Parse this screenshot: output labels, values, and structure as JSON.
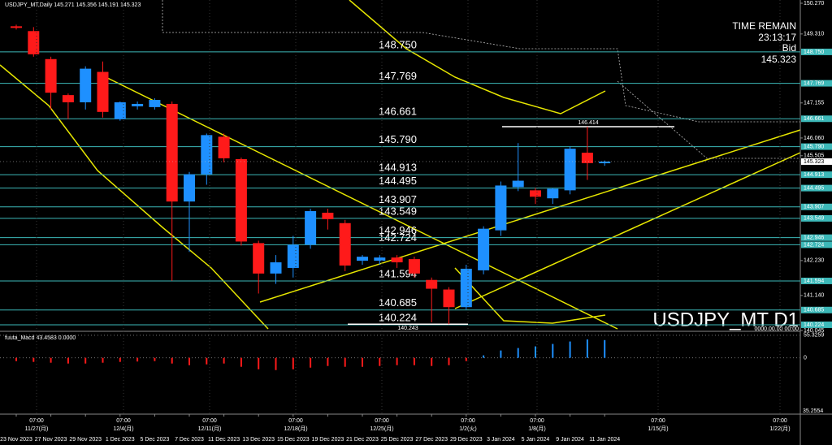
{
  "chart_data": {
    "type": "candlestick",
    "title": "USDJPY_MT,Daily 145.271 145.356 145.191 145.323",
    "symbol_label": "USDJPY_MT D1",
    "categories": [
      "23 Nov 2023",
      null,
      "27 Nov 2023",
      null,
      "29 Nov 2023",
      null,
      "1 Dec 2023",
      null,
      "5 Dec 2023",
      null,
      "7 Dec 2023",
      null,
      "11 Dec 2023",
      null,
      "13 Dec 2023",
      null,
      "15 Dec 2023",
      null,
      "19 Dec 2023",
      null,
      "21 Dec 2023",
      null,
      "25 Dec 2023",
      null,
      "27 Dec 2023",
      null,
      "29 Dec 2023",
      null,
      "3 Jan 2024",
      null,
      "5 Jan 2024",
      null,
      "9 Jan 2024",
      null,
      "11 Jan 2024"
    ],
    "open": [
      149.55,
      149.4,
      148.525,
      147.4,
      147.175,
      148.125,
      146.65,
      147.05,
      147.025,
      147.125,
      144.075,
      144.925,
      146.1,
      145.4,
      142.775,
      141.825,
      142.0,
      142.725,
      143.725,
      143.4,
      142.225,
      142.225,
      142.325,
      142.275,
      141.625,
      141.325,
      140.775,
      141.925,
      143.175,
      144.525,
      144.425,
      144.175,
      144.425,
      145.6,
      145.271
    ],
    "high": [
      149.6,
      149.525,
      148.6,
      147.45,
      148.3,
      148.45,
      147.2,
      147.2,
      147.3,
      147.2,
      145.0,
      146.2,
      146.2,
      145.45,
      142.85,
      142.4,
      143.0,
      143.85,
      143.85,
      143.5,
      142.4,
      142.4,
      142.4,
      142.35,
      141.7,
      141.4,
      142.1,
      143.3,
      144.7,
      145.9,
      144.5,
      144.5,
      145.8,
      146.414,
      145.356
    ],
    "low": [
      149.45,
      148.6,
      146.95,
      146.65,
      146.95,
      146.7,
      146.6,
      146.95,
      146.95,
      141.6,
      142.5,
      144.6,
      145.3,
      142.7,
      141.2,
      141.5,
      141.7,
      142.6,
      143.2,
      141.9,
      142.1,
      142.1,
      142.0,
      141.7,
      140.3,
      140.243,
      140.7,
      141.8,
      143.0,
      144.4,
      144.0,
      144.0,
      144.3,
      144.75,
      145.191
    ],
    "close": [
      149.5,
      148.675,
      147.475,
      147.175,
      148.225,
      146.875,
      147.175,
      147.125,
      147.25,
      144.075,
      144.925,
      146.15,
      145.425,
      142.825,
      141.825,
      142.175,
      142.725,
      143.775,
      143.525,
      142.075,
      142.35,
      142.325,
      142.175,
      141.825,
      141.35,
      140.775,
      141.975,
      143.225,
      144.575,
      144.725,
      144.225,
      144.475,
      145.725,
      145.275,
      145.323
    ],
    "up_color": "#1e90ff",
    "down_color": "#ff1a1a",
    "ylim": [
      140.045,
      150.27
    ],
    "yticks": [
      {
        "value": 150.27,
        "label": "150.270"
      },
      {
        "value": 149.31,
        "label": "149.310"
      },
      {
        "value": 147.155,
        "label": "147.155"
      },
      {
        "value": 146.06,
        "label": "146.060"
      },
      {
        "value": 145.505,
        "label": "145.505"
      },
      {
        "value": 142.23,
        "label": "142.230"
      },
      {
        "value": 141.14,
        "label": "141.140"
      },
      {
        "value": 140.045,
        "label": "140.045"
      }
    ],
    "level_color": "#3cb8b8",
    "levels": [
      {
        "value": 148.75,
        "label": "148.750"
      },
      {
        "value": 147.769,
        "label": "147.769"
      },
      {
        "value": 146.661,
        "label": "146.661"
      },
      {
        "value": 145.79,
        "label": "145.790"
      },
      {
        "value": 144.913,
        "label": "144.913"
      },
      {
        "value": 144.495,
        "label": "144.495"
      },
      {
        "value": 143.907,
        "label": "143.907"
      },
      {
        "value": 143.549,
        "label": "143.549"
      },
      {
        "value": 142.946,
        "label": "142.946"
      },
      {
        "value": 142.724,
        "label": "142.724"
      },
      {
        "value": 141.594,
        "label": "141.594"
      },
      {
        "value": 140.685,
        "label": "140.685"
      },
      {
        "value": 140.224,
        "label": "140.224"
      }
    ],
    "markers": [
      {
        "value": 146.414,
        "label": "146.414"
      },
      {
        "value": 140.243,
        "label": "140.243"
      }
    ],
    "current_price": {
      "value": 145.323,
      "label": "145.323"
    },
    "time_remain_label": "TIME REMAIN",
    "time_remain": "23:13:17",
    "bid_label": "Bid",
    "stamp": "0000.00.00 00:00",
    "sessions": [
      {
        "time": "07:00",
        "date": "11/27(月)"
      },
      {
        "time": "07:00",
        "date": "12/4(月)"
      },
      {
        "time": "07:00",
        "date": "12/11(月)"
      },
      {
        "time": "07:00",
        "date": "12/18(月)"
      },
      {
        "time": "07:00",
        "date": "12/25(月)"
      },
      {
        "time": "07:00",
        "date": "1/2(火)"
      },
      {
        "time": "07:00",
        "date": "1/8(月)"
      },
      {
        "time": "07:00",
        "date": "1/15(月)"
      },
      {
        "time": "07:00",
        "date": "1/22(月)"
      }
    ],
    "macd": {
      "title": "fuuta_Macd 43.4583 0.0000",
      "values": [
        -8,
        -10,
        -12,
        -14,
        -14,
        -12,
        -10,
        -9,
        -8,
        -14,
        -18,
        -16,
        -14,
        -22,
        -28,
        -30,
        -28,
        -24,
        -20,
        -22,
        -22,
        -20,
        -18,
        -18,
        -20,
        -18,
        -8,
        6,
        18,
        24,
        28,
        34,
        40,
        45,
        43.4583
      ],
      "ylim": [
        -134,
        57
      ],
      "yticks": [
        {
          "value": 55.3259,
          "label": "55.3259"
        },
        0
      ],
      "min_label": "35.2554",
      "up_color": "#1e90ff",
      "down_color": "#ff1a1a"
    }
  }
}
